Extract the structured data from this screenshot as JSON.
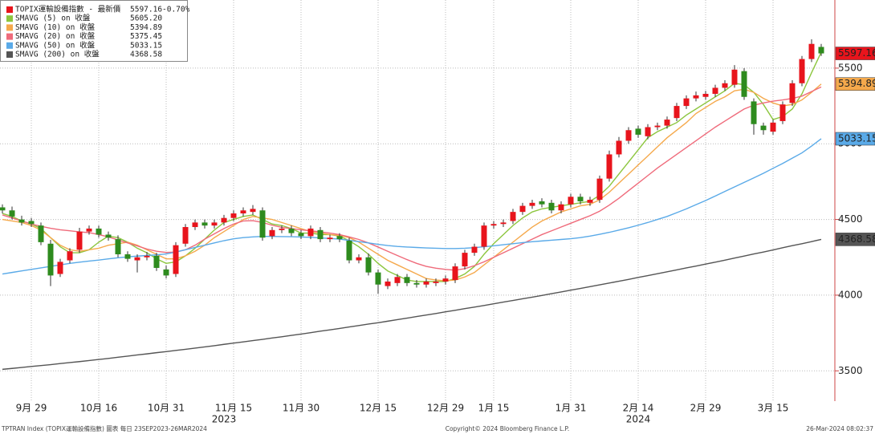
{
  "chart_data": {
    "type": "candlestick",
    "title": "TOPIX運輸設備指數 - 最新價",
    "change_label": "-0.70%",
    "up_color": "#e8141c",
    "down_color": "#2e8b1e",
    "categories": [
      null,
      null,
      null,
      "9月 29",
      null,
      null,
      null,
      null,
      null,
      null,
      "10月 16",
      null,
      null,
      null,
      null,
      null,
      null,
      "10月 31",
      null,
      null,
      null,
      null,
      null,
      null,
      "11月 15",
      null,
      null,
      null,
      null,
      null,
      null,
      "11月 30",
      null,
      null,
      null,
      null,
      null,
      null,
      null,
      "12月 15",
      null,
      null,
      null,
      null,
      null,
      null,
      "12月 29",
      null,
      null,
      null,
      null,
      "1月 15",
      null,
      null,
      null,
      null,
      null,
      null,
      null,
      "1月 31",
      null,
      null,
      null,
      null,
      null,
      null,
      "2月 14",
      null,
      null,
      null,
      null,
      null,
      null,
      "2月 29",
      null,
      null,
      null,
      null,
      null,
      null,
      "3月 15",
      null,
      null,
      null,
      null,
      null
    ],
    "year_labels": [
      "2023",
      "2024"
    ],
    "open": [
      4580,
      4560,
      4500,
      4490,
      4460,
      4340,
      4140,
      4230,
      4300,
      4420,
      4440,
      4400,
      4370,
      4270,
      4230,
      4250,
      4260,
      4170,
      4140,
      4340,
      4450,
      4480,
      4460,
      4480,
      4510,
      4540,
      4550,
      4560,
      4390,
      4430,
      4440,
      4410,
      4390,
      4430,
      4370,
      4390,
      4360,
      4230,
      4250,
      4150,
      4060,
      4080,
      4120,
      4080,
      4070,
      4080,
      4090,
      4100,
      4190,
      4280,
      4320,
      4460,
      4470,
      4490,
      4550,
      4590,
      4620,
      4610,
      4560,
      4600,
      4650,
      4610,
      4630,
      4770,
      4930,
      5020,
      5100,
      5050,
      5110,
      5120,
      5170,
      5250,
      5300,
      5310,
      5330,
      5370,
      5390,
      5480,
      5280,
      5120,
      5080,
      5150,
      5270,
      5400,
      5560,
      5640
    ],
    "high": [
      4600,
      4585,
      4525,
      4510,
      4480,
      4365,
      4240,
      4310,
      4445,
      4460,
      4460,
      4420,
      4395,
      4290,
      4270,
      4285,
      4280,
      4195,
      4350,
      4470,
      4500,
      4500,
      4500,
      4530,
      4560,
      4580,
      4595,
      4580,
      4450,
      4460,
      4460,
      4430,
      4460,
      4450,
      4400,
      4410,
      4380,
      4270,
      4275,
      4170,
      4110,
      4140,
      4140,
      4100,
      4110,
      4110,
      4130,
      4210,
      4300,
      4340,
      4480,
      4490,
      4500,
      4570,
      4610,
      4630,
      4640,
      4630,
      4620,
      4670,
      4670,
      4650,
      4790,
      4955,
      5045,
      5110,
      5120,
      5130,
      5140,
      5180,
      5270,
      5320,
      5345,
      5350,
      5390,
      5420,
      5520,
      5500,
      5300,
      5140,
      5160,
      5280,
      5420,
      5580,
      5690,
      5660
    ],
    "low": [
      4540,
      4500,
      4460,
      4450,
      4330,
      4060,
      4120,
      4210,
      4280,
      4400,
      4380,
      4360,
      4250,
      4220,
      4150,
      4230,
      4160,
      4110,
      4120,
      4320,
      4430,
      4440,
      4440,
      4460,
      4490,
      4520,
      4530,
      4360,
      4370,
      4410,
      4390,
      4370,
      4370,
      4350,
      4350,
      4350,
      4210,
      4210,
      4130,
      4010,
      4040,
      4060,
      4060,
      4050,
      4050,
      4060,
      4070,
      4080,
      4170,
      4260,
      4300,
      4440,
      4450,
      4470,
      4530,
      4570,
      4580,
      4540,
      4540,
      4580,
      4600,
      4590,
      4610,
      4750,
      4910,
      5000,
      5040,
      5030,
      5090,
      5100,
      5150,
      5230,
      5280,
      5290,
      5310,
      5350,
      5370,
      5290,
      5060,
      5060,
      5060,
      5130,
      5250,
      5380,
      5540,
      5580
    ],
    "close": [
      4560,
      4520,
      4480,
      4470,
      4350,
      4130,
      4220,
      4290,
      4420,
      4440,
      4400,
      4380,
      4270,
      4240,
      4250,
      4260,
      4180,
      4130,
      4330,
      4450,
      4480,
      4460,
      4480,
      4510,
      4540,
      4560,
      4570,
      4380,
      4430,
      4440,
      4410,
      4390,
      4440,
      4370,
      4380,
      4370,
      4230,
      4250,
      4150,
      4070,
      4090,
      4120,
      4080,
      4070,
      4090,
      4090,
      4110,
      4190,
      4280,
      4320,
      4460,
      4470,
      4480,
      4550,
      4590,
      4610,
      4600,
      4560,
      4600,
      4650,
      4620,
      4630,
      4770,
      4930,
      5020,
      5090,
      5060,
      5110,
      5120,
      5160,
      5250,
      5300,
      5320,
      5330,
      5370,
      5400,
      5490,
      5310,
      5130,
      5090,
      5140,
      5260,
      5400,
      5560,
      5660,
      5597.16
    ],
    "series": [
      {
        "name": "SMAVG (5)  on 收盤",
        "color": "#8cc63e",
        "last_label": "5605.20",
        "values": [
          4540,
          4520,
          4490,
          4470,
          4440,
          4380,
          4320,
          4280,
          4280,
          4300,
          4350,
          4390,
          4380,
          4350,
          4310,
          4280,
          4240,
          4210,
          4220,
          4260,
          4310,
          4370,
          4430,
          4480,
          4500,
          4520,
          4530,
          4500,
          4470,
          4460,
          4440,
          4410,
          4410,
          4400,
          4400,
          4390,
          4360,
          4320,
          4270,
          4210,
          4160,
          4130,
          4100,
          4090,
          4090,
          4090,
          4090,
          4110,
          4140,
          4190,
          4270,
          4340,
          4400,
          4460,
          4510,
          4550,
          4570,
          4580,
          4590,
          4600,
          4610,
          4620,
          4660,
          4720,
          4800,
          4880,
          4960,
          5040,
          5080,
          5110,
          5140,
          5190,
          5230,
          5270,
          5310,
          5350,
          5400,
          5390,
          5340,
          5260,
          5160,
          5180,
          5230,
          5330,
          5470,
          5605.2
        ]
      },
      {
        "name": "SMAVG (10)  on 收盤",
        "color": "#f5a94c",
        "axis_label": true,
        "values": [
          4500,
          4490,
          4480,
          4460,
          4430,
          4380,
          4330,
          4300,
          4290,
          4300,
          4310,
          4330,
          4340,
          4350,
          4330,
          4300,
          4270,
          4240,
          4240,
          4260,
          4290,
          4330,
          4380,
          4420,
          4460,
          4500,
          4520,
          4510,
          4500,
          4480,
          4460,
          4440,
          4420,
          4410,
          4400,
          4395,
          4380,
          4350,
          4310,
          4270,
          4230,
          4200,
          4170,
          4140,
          4110,
          4100,
          4095,
          4100,
          4120,
          4150,
          4200,
          4250,
          4300,
          4350,
          4400,
          4450,
          4490,
          4520,
          4550,
          4570,
          4590,
          4600,
          4630,
          4680,
          4740,
          4800,
          4860,
          4920,
          4980,
          5040,
          5090,
          5140,
          5200,
          5240,
          5280,
          5310,
          5350,
          5360,
          5340,
          5300,
          5270,
          5250,
          5260,
          5290,
          5340,
          5394.89
        ]
      },
      {
        "name": "SMAVG (20)  on 收盤",
        "color": "#ef6b7b",
        "values": [
          4530,
          4510,
          4490,
          4470,
          4455,
          4442,
          4432,
          4425,
          4418,
          4413,
          4400,
          4385,
          4365,
          4345,
          4325,
          4305,
          4290,
          4282,
          4285,
          4300,
          4330,
          4370,
          4405,
          4440,
          4470,
          4490,
          4492,
          4480,
          4462,
          4448,
          4440,
          4432,
          4425,
          4418,
          4410,
          4400,
          4385,
          4368,
          4345,
          4318,
          4290,
          4262,
          4235,
          4210,
          4190,
          4178,
          4170,
          4165,
          4175,
          4195,
          4220,
          4250,
          4280,
          4310,
          4340,
          4370,
          4400,
          4425,
          4450,
          4475,
          4500,
          4525,
          4555,
          4595,
          4640,
          4690,
          4740,
          4790,
          4840,
          4885,
          4930,
          4975,
          5020,
          5065,
          5110,
          5150,
          5190,
          5230,
          5255,
          5270,
          5282,
          5290,
          5300,
          5315,
          5345,
          5375.45
        ]
      },
      {
        "name": "SMAVG (50)  on 收盤",
        "color": "#5aaae8",
        "axis_label": true,
        "values": [
          4140,
          4150,
          4160,
          4170,
          4180,
          4190,
          4200,
          4210,
          4218,
          4225,
          4232,
          4240,
          4247,
          4253,
          4258,
          4262,
          4266,
          4272,
          4285,
          4300,
          4315,
          4330,
          4345,
          4360,
          4372,
          4380,
          4385,
          4388,
          4388,
          4387,
          4386,
          4384,
          4382,
          4378,
          4374,
          4370,
          4362,
          4354,
          4345,
          4336,
          4328,
          4322,
          4318,
          4315,
          4312,
          4310,
          4308,
          4308,
          4310,
          4314,
          4320,
          4326,
          4333,
          4340,
          4347,
          4353,
          4358,
          4363,
          4368,
          4373,
          4380,
          4390,
          4402,
          4415,
          4430,
          4445,
          4462,
          4480,
          4500,
          4520,
          4545,
          4570,
          4598,
          4625,
          4655,
          4685,
          4715,
          4745,
          4775,
          4805,
          4838,
          4870,
          4905,
          4940,
          4985,
          5033.15
        ]
      },
      {
        "name": "SMAVG (200)  on 收盤",
        "color": "#555555",
        "axis_label": true,
        "values": [
          3510,
          3516,
          3522,
          3529,
          3535,
          3541,
          3548,
          3555,
          3561,
          3568,
          3575,
          3582,
          3590,
          3597,
          3605,
          3612,
          3620,
          3627,
          3635,
          3642,
          3650,
          3658,
          3666,
          3675,
          3683,
          3691,
          3700,
          3708,
          3717,
          3725,
          3734,
          3743,
          3752,
          3762,
          3771,
          3780,
          3790,
          3799,
          3809,
          3818,
          3828,
          3838,
          3848,
          3859,
          3869,
          3879,
          3890,
          3900,
          3911,
          3921,
          3932,
          3943,
          3954,
          3965,
          3976,
          3987,
          3998,
          4010,
          4021,
          4033,
          4044,
          4056,
          4068,
          4080,
          4092,
          4104,
          4117,
          4129,
          4142,
          4154,
          4167,
          4180,
          4192,
          4205,
          4218,
          4231,
          4245,
          4258,
          4272,
          4285,
          4299,
          4313,
          4327,
          4340,
          4354,
          4368.58
        ]
      }
    ],
    "ylim": [
      3300,
      5950
    ],
    "yticks": [
      3500,
      4000,
      4500,
      5000,
      5500
    ],
    "grid": true,
    "footer": {
      "left": "TPTRAN Index (TOPIX運輸設備指數) 圖表  每日 23SEP2023-26MAR2024",
      "center": "Copyright© 2024 Bloomberg Finance L.P.",
      "right": "26-Mar-2024 08:02:37"
    }
  }
}
